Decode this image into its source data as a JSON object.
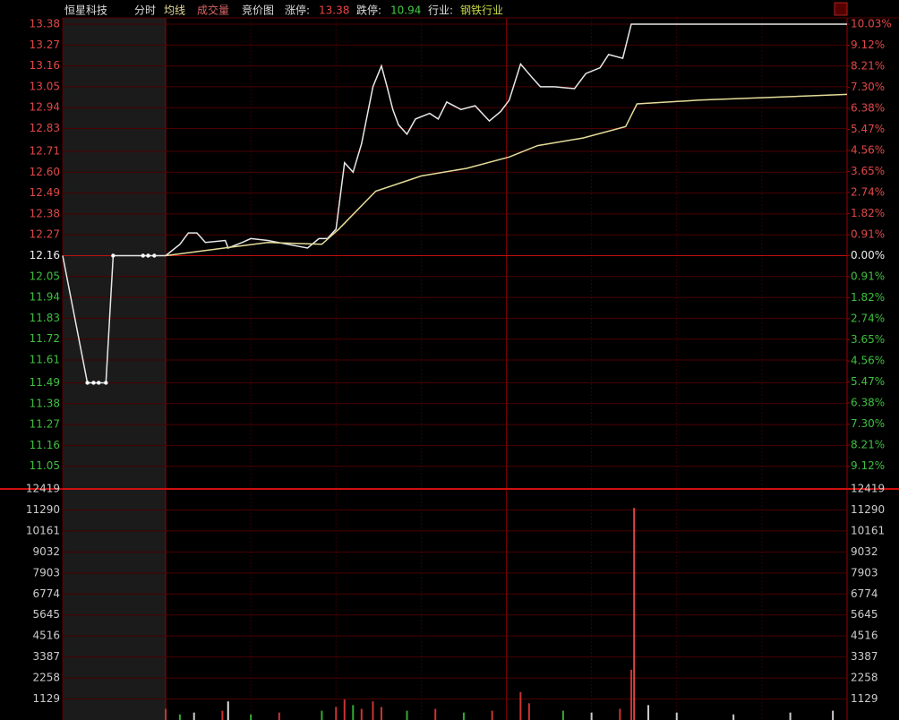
{
  "chart_data": {
    "type": "line",
    "title": "恒星科技",
    "mode": "分时",
    "auction_label": "竞价图",
    "limit_up_label": "涨停:",
    "limit_up": 13.38,
    "limit_down_label": "跌停:",
    "limit_down": 10.94,
    "industry_label": "行业:",
    "industry": "钢铁行业",
    "ylim": [
      10.94,
      13.38
    ],
    "yticks": [
      13.38,
      13.27,
      13.16,
      13.05,
      12.94,
      12.83,
      12.71,
      {
        "value": 12.6,
        "label": "12.60"
      },
      12.49,
      12.38,
      12.27,
      12.16,
      12.05,
      11.94,
      11.83,
      11.72,
      11.61,
      11.49,
      11.38,
      11.27,
      11.16,
      11.05
    ],
    "y2lim": [
      -10.03,
      10.03
    ],
    "y2ticks": [
      {
        "value": 10.03,
        "label": "10.03%"
      },
      {
        "value": 9.12,
        "label": "9.12%"
      },
      {
        "value": 8.21,
        "label": "8.21%"
      },
      {
        "value": 7.3,
        "label": "7.30%"
      },
      {
        "value": 6.38,
        "label": "6.38%"
      },
      {
        "value": 5.47,
        "label": "5.47%"
      },
      {
        "value": 4.56,
        "label": "4.56%"
      },
      {
        "value": 3.65,
        "label": "3.65%"
      },
      {
        "value": 2.74,
        "label": "2.74%"
      },
      {
        "value": 1.82,
        "label": "1.82%"
      },
      {
        "value": 0.91,
        "label": "0.91%"
      },
      {
        "value": 0,
        "label": "0.00%"
      },
      {
        "value": -0.91,
        "label": "0.91%"
      },
      {
        "value": -1.82,
        "label": "1.82%"
      },
      {
        "value": -2.74,
        "label": "2.74%"
      },
      {
        "value": -3.65,
        "label": "3.65%"
      },
      {
        "value": -4.56,
        "label": "4.56%"
      },
      {
        "value": -5.47,
        "label": "5.47%"
      },
      {
        "value": -6.38,
        "label": "6.38%"
      },
      {
        "value": -7.3,
        "label": "7.30%"
      },
      {
        "value": -8.21,
        "label": "8.21%"
      },
      {
        "value": -9.12,
        "label": "9.12%"
      }
    ],
    "xlim": [
      0,
      240
    ],
    "auction_xlim": [
      0,
      10
    ],
    "auction": {
      "color": "#e8e8e8",
      "x": [
        0,
        2.4,
        3,
        3.5,
        4.2,
        4.9,
        7.8,
        8.3,
        8.9
      ],
      "values": [
        12.16,
        11.49,
        11.49,
        11.49,
        11.49,
        12.16,
        12.16,
        12.16,
        12.16
      ]
    },
    "series": [
      {
        "color": "#e8e8e8",
        "x": [
          0,
          5,
          8,
          11,
          14,
          21,
          22,
          27,
          30,
          36,
          43,
          50,
          54,
          57,
          60,
          63,
          66,
          69,
          73,
          76,
          78,
          80,
          82,
          85,
          88,
          93,
          96,
          99,
          104,
          109,
          114,
          118,
          121,
          125,
          129,
          132,
          137,
          144,
          148,
          153,
          156,
          161,
          164,
          240
        ],
        "values": [
          12.16,
          12.22,
          12.28,
          12.28,
          12.23,
          12.24,
          12.2,
          12.23,
          12.25,
          12.24,
          12.22,
          12.2,
          12.25,
          12.25,
          12.3,
          12.65,
          12.6,
          12.75,
          13.05,
          13.16,
          13.05,
          12.93,
          12.85,
          12.8,
          12.88,
          12.91,
          12.88,
          12.97,
          12.93,
          12.95,
          12.87,
          12.92,
          12.98,
          13.17,
          13.1,
          13.05,
          13.05,
          13.04,
          13.12,
          13.15,
          13.22,
          13.2,
          13.38,
          13.38
        ]
      },
      {
        "name": "均线",
        "color": "#e6dc9a",
        "x": [
          0,
          36,
          55,
          61,
          74,
          90,
          106,
          121,
          131,
          147,
          162,
          166,
          188,
          240
        ],
        "values": [
          12.16,
          12.23,
          12.22,
          12.3,
          12.5,
          12.58,
          12.62,
          12.68,
          12.74,
          12.78,
          12.84,
          12.96,
          12.98,
          13.01
        ]
      }
    ],
    "volume": {
      "name": "成交量",
      "ylim": [
        0,
        12419
      ],
      "yticks": [
        12419,
        11290,
        10161,
        9032,
        7903,
        6774,
        5645,
        4516,
        3387,
        2258,
        1129
      ],
      "x": [
        0,
        5,
        10,
        20,
        22,
        30,
        40,
        55,
        60,
        63,
        66,
        69,
        73,
        76,
        85,
        95,
        105,
        115,
        125,
        128,
        140,
        150,
        160,
        164,
        165,
        170,
        180,
        200,
        220,
        235
      ],
      "values": [
        600,
        300,
        400,
        500,
        1000,
        300,
        400,
        500,
        700,
        1100,
        800,
        600,
        1000,
        700,
        500,
        600,
        400,
        500,
        1500,
        900,
        500,
        400,
        600,
        2700,
        11400,
        800,
        400,
        300,
        400,
        500
      ],
      "colors": [
        "#cc3333",
        "#33aa33",
        "#cccccc",
        "#cc3333",
        "#dddddd",
        "#33aa33",
        "#cc3333",
        "#33aa33",
        "#cc3333",
        "#cc3333",
        "#33aa33",
        "#cc3333",
        "#cc3333",
        "#cc3333",
        "#33aa33",
        "#cc3333",
        "#33aa33",
        "#cc3333",
        "#cc3333",
        "#cc3333",
        "#33aa33",
        "#cccccc",
        "#cc3333",
        "#cc3333",
        "#dd4444",
        "#cccccc",
        "#cccccc",
        "#cccccc",
        "#cccccc",
        "#cccccc"
      ]
    }
  }
}
